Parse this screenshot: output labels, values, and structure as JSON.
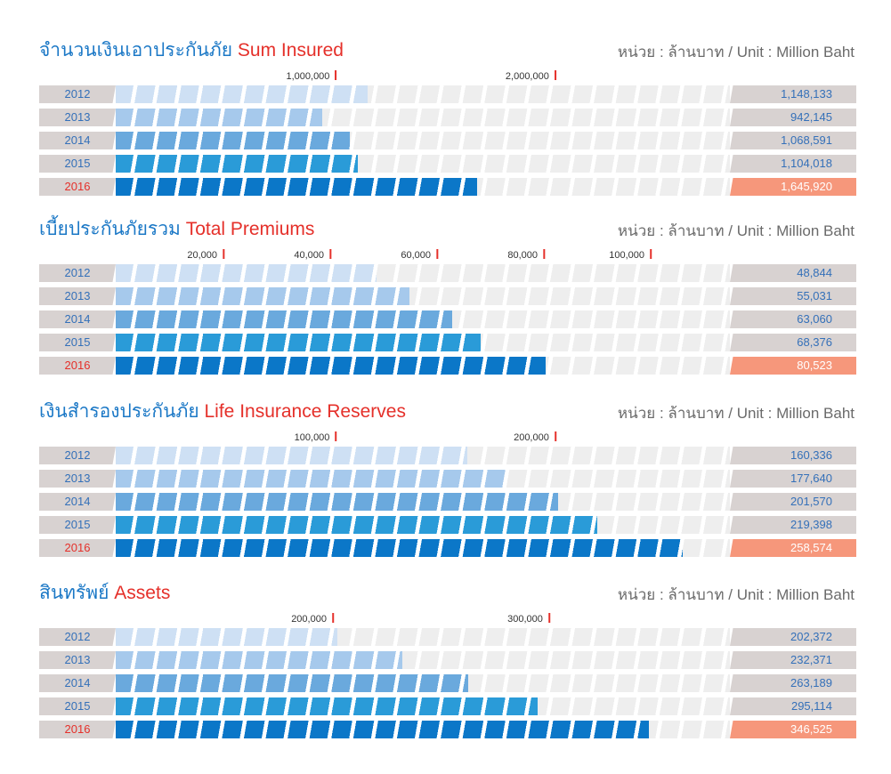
{
  "colors": {
    "title_thai": "#1b78c6",
    "title_english": "#e5302a",
    "unit_text": "#6a6a6a",
    "tick_mark": "#e5302a",
    "tick_text": "#333333",
    "label_box": "#d8d2d1",
    "label_text": "#3470b9",
    "track_segment": "#eeeeee",
    "highlight_label_text": "#e5302a",
    "highlight_value_box": "#f6977b",
    "highlight_value_text": "#ffffff",
    "year_bars": [
      "#cee0f4",
      "#a6c9ec",
      "#6aa9dd",
      "#2a9bd8",
      "#0b77c8"
    ]
  },
  "chart_data": [
    {
      "type": "bar",
      "title_th": "จำนวนเงินเอาประกันภัย",
      "title_en": "Sum Insured",
      "unit": "หน่วย : ล้านบาท / Unit : Million Baht",
      "categories": [
        "2012",
        "2013",
        "2014",
        "2015",
        "2016"
      ],
      "values": [
        1148133,
        942145,
        1068591,
        1104018,
        1645920
      ],
      "value_labels": [
        "1,148,133",
        "942,145",
        "1,068,591",
        "1,104,018",
        "1,645,920"
      ],
      "xticks": [
        1000000,
        2000000
      ],
      "xtick_labels": [
        "1,000,000",
        "2,000,000"
      ],
      "xlim": [
        0,
        2800000
      ],
      "highlight_index": 4
    },
    {
      "type": "bar",
      "title_th": "เบี้ยประกันภัยรวม",
      "title_en": "Total Premiums",
      "unit": "หน่วย : ล้านบาท / Unit : Million Baht",
      "categories": [
        "2012",
        "2013",
        "2014",
        "2015",
        "2016"
      ],
      "values": [
        48844,
        55031,
        63060,
        68376,
        80523
      ],
      "value_labels": [
        "48,844",
        "55,031",
        "63,060",
        "68,376",
        "80,523"
      ],
      "xticks": [
        20000,
        40000,
        60000,
        80000,
        100000
      ],
      "xtick_labels": [
        "20,000",
        "40,000",
        "60,000",
        "80,000",
        "100,000"
      ],
      "xlim": [
        0,
        115000
      ],
      "highlight_index": 4
    },
    {
      "type": "bar",
      "title_th": "เงินสำรองประกันภัย",
      "title_en": "Life Insurance Reserves",
      "unit": "หน่วย : ล้านบาท / Unit : Million Baht",
      "categories": [
        "2012",
        "2013",
        "2014",
        "2015",
        "2016"
      ],
      "values": [
        160336,
        177640,
        201570,
        219398,
        258574
      ],
      "value_labels": [
        "160,336",
        "177,640",
        "201,570",
        "219,398",
        "258,574"
      ],
      "xticks": [
        100000,
        200000
      ],
      "xtick_labels": [
        "100,000",
        "200,000"
      ],
      "xlim": [
        0,
        280000
      ],
      "highlight_index": 4
    },
    {
      "type": "bar",
      "title_th": "สินทรัพย์",
      "title_en": "Assets",
      "unit": "หน่วย : ล้านบาท / Unit : Million Baht",
      "categories": [
        "2012",
        "2013",
        "2014",
        "2015",
        "2016"
      ],
      "values": [
        202372,
        232371,
        263189,
        295114,
        346525
      ],
      "value_labels": [
        "202,372",
        "232,371",
        "263,189",
        "295,114",
        "346,525"
      ],
      "xticks": [
        200000,
        300000
      ],
      "xtick_labels": [
        "200,000",
        "300,000"
      ],
      "xlim": [
        100000,
        384000
      ],
      "highlight_index": 4
    }
  ]
}
